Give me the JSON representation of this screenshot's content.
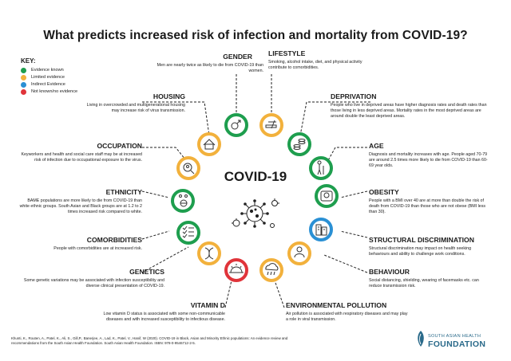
{
  "title": "What predicts increased risk of infection and mortality from COVID-19?",
  "key": {
    "title": "KEY:",
    "items": [
      {
        "label": "Evidence known",
        "color": "#1e9e4e"
      },
      {
        "label": "Limited evidence",
        "color": "#f2b13c"
      },
      {
        "label": "Indirect Evidence",
        "color": "#2a90d4"
      },
      {
        "label": "Not known/no evidence",
        "color": "#e0343a"
      }
    ]
  },
  "center": {
    "title": "COVID-19"
  },
  "factors": {
    "gender": {
      "heading": "GENDER",
      "text": "Men are nearly twice as likely to die from COVID-19 than women.",
      "icon": "gender-icon",
      "color": "#1e9e4e"
    },
    "lifestyle": {
      "heading": "LIFESTYLE",
      "text": "Smoking, alcohol intake, diet, and physical activity contribute to comorbidities.",
      "icon": "smoking-icon",
      "color": "#f2b13c"
    },
    "housing": {
      "heading": "HOUSING",
      "text": "Living in overcrowded and multigenerational housing may increase risk of virus transmission.",
      "icon": "house-icon",
      "color": "#f2b13c"
    },
    "deprivation": {
      "heading": "DEPRIVATION",
      "text": "People who live in deprived areas have higher diagnosis rates and death rates than those living in less deprived areas. Mortality rates in the most deprived areas are around double the least deprived areas.",
      "icon": "coins-icon",
      "color": "#1e9e4e"
    },
    "occupation": {
      "heading": "OCCUPATION",
      "text": "Keyworkers and health and social care staff may be at increased risk of infection due to occupational exposure to the virus.",
      "icon": "search-worker-icon",
      "color": "#f2b13c"
    },
    "age": {
      "heading": "AGE",
      "text": "Diagnosis and mortality increases with age. People aged 70-79 are around 2.5 times more likely to die from COVID-19 than 60-69 year olds.",
      "icon": "elderly-icon",
      "color": "#1e9e4e"
    },
    "ethnicity": {
      "heading": "ETHNICITY",
      "text": "BAME populations are more likely to die from COVID-19 than white ethnic groups. South Asian and Black groups are at 1.2 to 2 times increased risk compared to white.",
      "icon": "people-globe-icon",
      "color": "#1e9e4e"
    },
    "obesity": {
      "heading": "OBESITY",
      "text": "People with a BMI over 40 are at more than double the risk of death from COVID-19 than those who are not obese (BMI less than 30).",
      "icon": "scale-icon",
      "color": "#1e9e4e"
    },
    "comorbidities": {
      "heading": "COMORBIDITIES",
      "text": "People with comorbidities are at increased risk.",
      "icon": "checklist-icon",
      "color": "#1e9e4e"
    },
    "structural": {
      "heading": "STRUCTURAL DISCRIMINATION",
      "text": "Structural discrimination may impact on health seeking behaviours and ability to challenge work conditions.",
      "icon": "buildings-icon",
      "color": "#2a90d4"
    },
    "genetics": {
      "heading": "GENETICS",
      "text": "Some genetic variations may be associated with infection susceptibility and diverse clinical presentation of COVID-19.",
      "icon": "dna-icon",
      "color": "#f2b13c"
    },
    "behaviour": {
      "heading": "BEHAVIOUR",
      "text": "Social distancing, shielding, wearing of facemasks etc. can reduce transmission risk.",
      "icon": "mask-icon",
      "color": "#f2b13c"
    },
    "vitamind": {
      "heading": "VITAMIN D",
      "text": "Low vitamin D status is associated with some non-communicable diseases and with increased susceptibility to infectious disease.",
      "icon": "sun-icon",
      "color": "#e0343a"
    },
    "environmental": {
      "heading": "ENVIRONMENTAL POLLUTION",
      "text": "Air pollution is associated with respiratory diseases and may play a role in viral transmission.",
      "icon": "cloud-rain-icon",
      "color": "#f2b13c"
    }
  },
  "references": "Khunti, K., Routen, A., Patel, K., Ali, S., Gill,P., Banerjee, A., Lad, K., Patel, V., Hanif, W (2020). COVID-19 in Black, Asian and Minority Ethnic populations: An evidence review and recommendations from the South Asian Health Foundation. South Asian Health Foundation. ISBN: 978-0-9546712-2-5.",
  "logo": {
    "line1": "SOUTH ASIAN HEALTH",
    "line2": "FOUNDATION",
    "color": "#2a6a8a"
  }
}
